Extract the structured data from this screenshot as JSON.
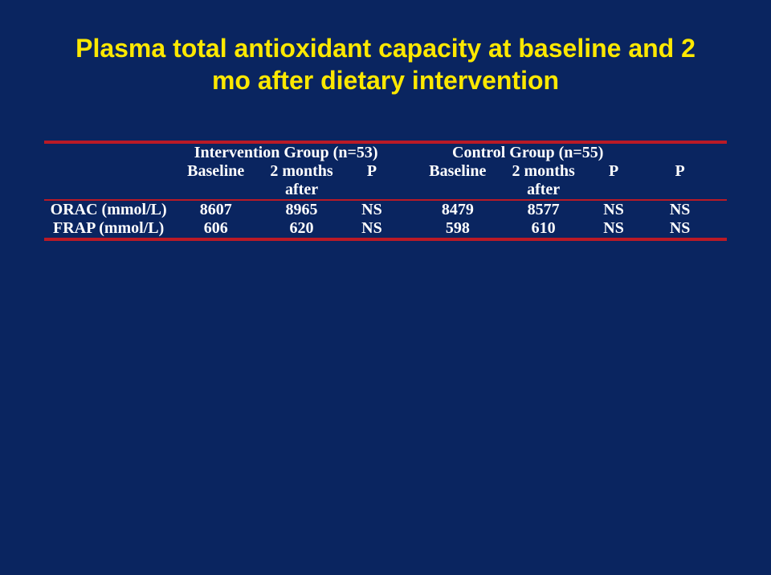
{
  "title_line1": "Plasma total antioxidant capacity at baseline and 2",
  "title_line2": "mo after dietary intervention",
  "groups": {
    "intervention": "Intervention Group (n=53)",
    "control": "Control Group (n=55)"
  },
  "columns": {
    "baseline": "Baseline",
    "two_months": "2 months",
    "after": "after",
    "p": "P"
  },
  "rows": [
    {
      "label": "ORAC (mmol/L)",
      "int_baseline": "8607",
      "int_2mo": "8965",
      "int_p": "NS",
      "ctl_baseline": "8479",
      "ctl_2mo": "8577",
      "ctl_p": "NS",
      "between_p": "NS"
    },
    {
      "label": "FRAP (mmol/L)",
      "int_baseline": "606",
      "int_2mo": "620",
      "int_p": "NS",
      "ctl_baseline": "598",
      "ctl_2mo": "610",
      "ctl_p": "NS",
      "between_p": "NS"
    }
  ],
  "colors": {
    "background": "#0a2560",
    "title": "#fde800",
    "rule": "#ba1a26",
    "text": "#ffffff"
  }
}
